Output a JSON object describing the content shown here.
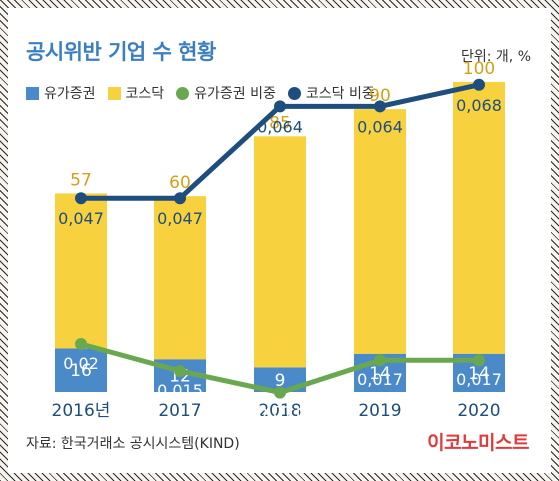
{
  "title": "공시위반 기업 수 현황",
  "unit": "단위: 개, %",
  "source": "자료: 한국거래소 공시시스템(KIND)",
  "logo": "이코노미스트",
  "colors": {
    "kospi": "#4a8ac9",
    "kosdaq": "#f7d23e",
    "kospi_ratio": "#6aa84f",
    "kosdaq_ratio": "#1d4e7e",
    "kosdaq_value_label": "#d4a017"
  },
  "chart_data": {
    "type": "bar",
    "stacked": true,
    "categories": [
      "2016년",
      "2017",
      "2018",
      "2019",
      "2020"
    ],
    "series": [
      {
        "name": "유가증권",
        "type": "bar",
        "values": [
          16,
          12,
          9,
          14,
          14
        ]
      },
      {
        "name": "코스닥",
        "type": "bar",
        "values": [
          57,
          60,
          85,
          90,
          100
        ]
      },
      {
        "name": "유가증권 비중",
        "type": "line",
        "values": [
          0.02,
          0.015,
          0.011,
          0.017,
          0.017
        ]
      },
      {
        "name": "코스닥 비중",
        "type": "line",
        "values": [
          0.047,
          0.047,
          0.064,
          0.064,
          0.068
        ]
      }
    ],
    "legend_position": "top-left",
    "grid": false
  }
}
